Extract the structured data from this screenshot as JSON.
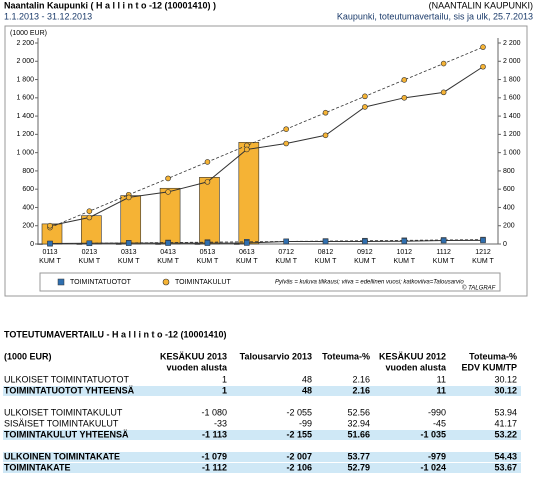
{
  "header": {
    "title": "Naantalin Kaupunki ( H a l l i n t o  -12 (10001410) )",
    "org": "(NAANTALIN KAUPUNKI)",
    "period": "1.1.2013 - 31.12.2013",
    "subtitle": "Kaupunki, toteutumavertailu, sis ja ulk, 25.7.2013"
  },
  "chart_data": {
    "type": "bar",
    "y_label": "(1000 EUR)",
    "categories": [
      "0113",
      "0213",
      "0313",
      "0413",
      "0513",
      "0613",
      "0712",
      "0812",
      "0912",
      "1012",
      "1112",
      "1212"
    ],
    "category_sublabel": "KUM T",
    "ylim": [
      0,
      2200
    ],
    "yticks": [
      0,
      200,
      400,
      600,
      800,
      {
        "value": 1000,
        "label": "1 000"
      },
      {
        "value": 1200,
        "label": "1 200"
      },
      {
        "value": 1400,
        "label": "1 400"
      },
      {
        "value": 1600,
        "label": "1 600"
      },
      {
        "value": 1800,
        "label": "1 800"
      },
      {
        "value": 2000,
        "label": "2 000"
      },
      {
        "value": 2200,
        "label": "2 200"
      }
    ],
    "grid": false,
    "series": [
      {
        "name": "TOIMINTATUOTOT",
        "color": "#2f6fb0",
        "marker": "square",
        "current": [
          1,
          1,
          1,
          1,
          1,
          1,
          null,
          null,
          null,
          null,
          null,
          null
        ],
        "previous": [
          5,
          8,
          10,
          10,
          10,
          11,
          28,
          28,
          28,
          30,
          38,
          40
        ],
        "budget": [
          4,
          8,
          12,
          16,
          20,
          24,
          28,
          32,
          36,
          40,
          44,
          48
        ]
      },
      {
        "name": "TOIMINTAKULUT",
        "color": "#f5b335",
        "marker": "circle",
        "current": [
          220,
          310,
          530,
          610,
          730,
          1113,
          null,
          null,
          null,
          null,
          null,
          null
        ],
        "previous": [
          200,
          290,
          510,
          570,
          680,
          1035,
          1100,
          1190,
          1500,
          1600,
          1660,
          1940
        ],
        "budget": [
          180,
          359,
          539,
          718,
          898,
          1078,
          1257,
          1437,
          1616,
          1796,
          1975,
          2155
        ]
      }
    ],
    "legend_note": "Pylväs = kuluva tilikausi; viiva = edellinen vuosi; katkoviiva=Talousarvio",
    "source": "© TALGRAF"
  },
  "table": {
    "title": "TOTEUTUMAVERTAILU - H a l l i n t o  -12 (10001410)",
    "columns": [
      [
        "(1000 EUR)"
      ],
      [
        "KESÄKUU 2013",
        "vuoden alusta"
      ],
      [
        "Talousarvio 2013"
      ],
      [
        "Toteuma-%"
      ],
      [
        "KESÄKUU 2012",
        "vuoden alusta"
      ],
      [
        "Toteuma-%",
        "EDV KUM/TP"
      ]
    ],
    "sections": [
      [
        {
          "cells": [
            "ULKOISET TOIMINTATUOTOT",
            "1",
            "48",
            "2.16",
            "11",
            "30.12"
          ],
          "highlight": false
        },
        {
          "cells": [
            "TOIMINTATUOTOT YHTEENSÄ",
            "1",
            "48",
            "2.16",
            "11",
            "30.12"
          ],
          "highlight": true
        }
      ],
      [
        {
          "cells": [
            "ULKOISET TOIMINTAKULUT",
            "-1 080",
            "-2 055",
            "52.56",
            "-990",
            "53.94"
          ],
          "highlight": false
        },
        {
          "cells": [
            "SISÄISET TOIMINTAKULUT",
            "-33",
            "-99",
            "32.94",
            "-45",
            "41.17"
          ],
          "highlight": false
        },
        {
          "cells": [
            "TOIMINTAKULUT YHTEENSÄ",
            "-1 113",
            "-2 155",
            "51.66",
            "-1 035",
            "53.22"
          ],
          "highlight": true
        }
      ],
      [
        {
          "cells": [
            "ULKOINEN TOIMINTAKATE",
            "-1 079",
            "-2 007",
            "53.77",
            "-979",
            "54.43"
          ],
          "highlight": true
        },
        {
          "cells": [
            "TOIMINTAKATE",
            "-1 112",
            "-2 106",
            "52.79",
            "-1 024",
            "53.67"
          ],
          "highlight": true
        }
      ]
    ]
  }
}
